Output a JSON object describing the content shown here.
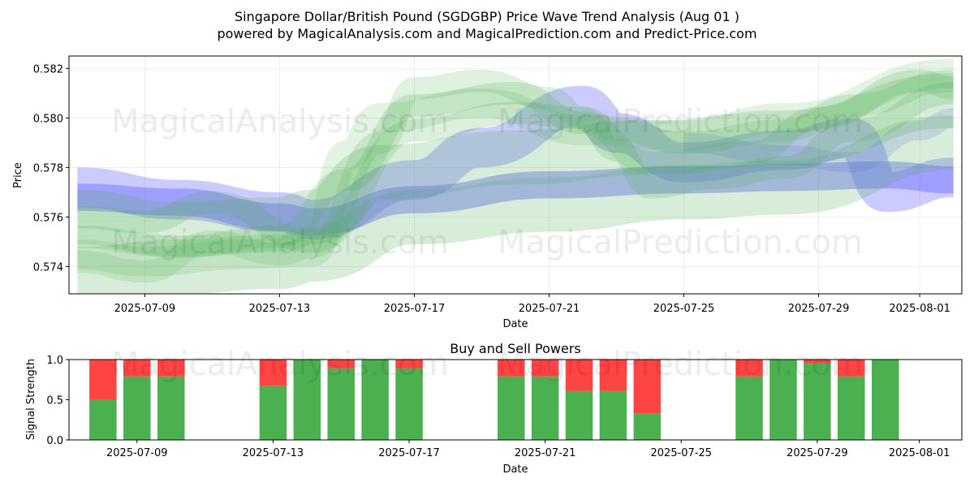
{
  "title": "Singapore Dollar/British Pound (SGDGBP) Price Wave Trend Analysis (Aug 01 )",
  "subtitle": "powered by MagicalAnalysis.com and MagicalPrediction.com and Predict-Price.com",
  "watermarks": [
    "MagicalAnalysis.com",
    "MagicalPrediction.com"
  ],
  "colors": {
    "green_band": "#4caf50",
    "blue_band": "#6b6bff",
    "buy": "#4caf50",
    "sell": "#ff4444"
  },
  "chart_data": [
    {
      "type": "area",
      "name": "price-wave-chart",
      "xlabel": "Date",
      "ylabel": "Price",
      "xlim": [
        "2025-07-06 18:00",
        "2025-08-02 06:00"
      ],
      "ylim": [
        0.5729,
        0.5825
      ],
      "x_ticks": [
        "2025-07-09",
        "2025-07-13",
        "2025-07-17",
        "2025-07-21",
        "2025-07-25",
        "2025-07-29",
        "2025-08-01"
      ],
      "y_ticks": [
        "0.574",
        "0.576",
        "0.578",
        "0.580",
        "0.582"
      ],
      "grid": true,
      "bands": [
        {
          "color": "blue",
          "opacity": 0.45,
          "width": 0.0011,
          "points": [
            [
              "2025-07-07",
              0.5768
            ],
            [
              "2025-07-10",
              0.5766
            ],
            [
              "2025-07-13",
              0.576
            ],
            [
              "2025-07-14",
              0.5758
            ],
            [
              "2025-07-17",
              0.5767
            ],
            [
              "2025-07-21",
              0.5773
            ],
            [
              "2025-07-25",
              0.5775
            ],
            [
              "2025-07-28",
              0.5776
            ],
            [
              "2025-07-31",
              0.5777
            ],
            [
              "2025-08-02",
              0.5775
            ]
          ]
        },
        {
          "color": "blue",
          "opacity": 0.35,
          "width": 0.0016,
          "points": [
            [
              "2025-07-07",
              0.5772
            ],
            [
              "2025-07-10",
              0.5767
            ],
            [
              "2025-07-13",
              0.5762
            ],
            [
              "2025-07-14",
              0.5759
            ],
            [
              "2025-07-17",
              0.5775
            ],
            [
              "2025-07-19",
              0.5788
            ],
            [
              "2025-07-22",
              0.5805
            ],
            [
              "2025-07-23",
              0.5794
            ],
            [
              "2025-07-25",
              0.5782
            ],
            [
              "2025-07-28",
              0.5787
            ],
            [
              "2025-07-30",
              0.5792
            ],
            [
              "2025-07-31",
              0.577
            ],
            [
              "2025-08-02",
              0.5776
            ]
          ]
        },
        {
          "color": "blue",
          "opacity": 0.2,
          "width": 0.0008,
          "points": [
            [
              "2025-07-25",
              0.579
            ],
            [
              "2025-07-28",
              0.5785
            ],
            [
              "2025-07-30",
              0.5782
            ],
            [
              "2025-08-01",
              0.5795
            ],
            [
              "2025-08-02",
              0.58
            ]
          ]
        },
        {
          "color": "green",
          "opacity": 0.22,
          "width": 0.0022,
          "points": [
            [
              "2025-07-07",
              0.576
            ],
            [
              "2025-07-10",
              0.5755
            ],
            [
              "2025-07-13",
              0.5757
            ],
            [
              "2025-07-14",
              0.576
            ],
            [
              "2025-07-16",
              0.5778
            ],
            [
              "2025-07-20",
              0.5784
            ],
            [
              "2025-07-24",
              0.5788
            ],
            [
              "2025-07-28",
              0.5792
            ],
            [
              "2025-08-02",
              0.5807
            ]
          ]
        },
        {
          "color": "green",
          "opacity": 0.22,
          "width": 0.0022,
          "points": [
            [
              "2025-07-07",
              0.5737
            ],
            [
              "2025-07-10",
              0.574
            ],
            [
              "2025-07-13",
              0.5742
            ],
            [
              "2025-07-14",
              0.5745
            ],
            [
              "2025-07-17",
              0.576
            ],
            [
              "2025-07-21",
              0.5765
            ],
            [
              "2025-07-25",
              0.577
            ],
            [
              "2025-07-28",
              0.5772
            ],
            [
              "2025-08-02",
              0.579
            ]
          ]
        },
        {
          "color": "green",
          "opacity": 0.18,
          "width": 0.0009,
          "points": [
            [
              "2025-07-07",
              0.5742
            ],
            [
              "2025-07-09",
              0.5738
            ],
            [
              "2025-07-11",
              0.575
            ],
            [
              "2025-07-13",
              0.5745
            ],
            [
              "2025-07-14",
              0.5748
            ],
            [
              "2025-07-16",
              0.579
            ],
            [
              "2025-07-17",
              0.5812
            ],
            [
              "2025-07-19",
              0.5815
            ],
            [
              "2025-07-21",
              0.5808
            ],
            [
              "2025-07-22",
              0.58
            ],
            [
              "2025-07-23",
              0.5795
            ],
            [
              "2025-07-25",
              0.579
            ],
            [
              "2025-07-28",
              0.5795
            ],
            [
              "2025-07-30",
              0.5805
            ],
            [
              "2025-08-02",
              0.5815
            ]
          ]
        },
        {
          "color": "green",
          "opacity": 0.2,
          "width": 0.0009,
          "points": [
            [
              "2025-07-07",
              0.576
            ],
            [
              "2025-07-09",
              0.5758
            ],
            [
              "2025-07-11",
              0.5766
            ],
            [
              "2025-07-14",
              0.575
            ],
            [
              "2025-07-17",
              0.5795
            ],
            [
              "2025-07-20",
              0.5802
            ],
            [
              "2025-07-22",
              0.58
            ],
            [
              "2025-07-23",
              0.5787
            ],
            [
              "2025-07-24",
              0.5772
            ],
            [
              "2025-07-26",
              0.5776
            ],
            [
              "2025-07-28",
              0.578
            ],
            [
              "2025-07-30",
              0.5795
            ],
            [
              "2025-08-02",
              0.581
            ]
          ]
        },
        {
          "color": "green",
          "opacity": 0.2,
          "width": 0.0009,
          "points": [
            [
              "2025-07-07",
              0.5752
            ],
            [
              "2025-07-10",
              0.5748
            ],
            [
              "2025-07-13",
              0.5752
            ],
            [
              "2025-07-15",
              0.5775
            ],
            [
              "2025-07-17",
              0.5805
            ],
            [
              "2025-07-20",
              0.581
            ],
            [
              "2025-07-22",
              0.5798
            ],
            [
              "2025-07-24",
              0.5782
            ],
            [
              "2025-07-27",
              0.5786
            ],
            [
              "2025-07-29",
              0.58
            ],
            [
              "2025-08-01",
              0.5815
            ],
            [
              "2025-08-02",
              0.5812
            ]
          ]
        },
        {
          "color": "green",
          "opacity": 0.16,
          "width": 0.0012,
          "points": [
            [
              "2025-07-07",
              0.5745
            ],
            [
              "2025-07-09",
              0.5742
            ],
            [
              "2025-07-12",
              0.5745
            ],
            [
              "2025-07-14",
              0.5746
            ],
            [
              "2025-07-15",
              0.5785
            ],
            [
              "2025-07-16",
              0.58
            ],
            [
              "2025-07-19",
              0.5806
            ],
            [
              "2025-07-22",
              0.5795
            ],
            [
              "2025-07-25",
              0.5793
            ],
            [
              "2025-07-28",
              0.58
            ],
            [
              "2025-08-02",
              0.5818
            ]
          ]
        }
      ]
    },
    {
      "type": "bar",
      "name": "buy-sell-powers",
      "title": "Buy and Sell Powers",
      "xlabel": "Date",
      "ylabel": "Signal Strength",
      "ylim": [
        0,
        1
      ],
      "y_ticks": [
        "0.0",
        "0.5",
        "1.0"
      ],
      "x_ticks": [
        "2025-07-09",
        "2025-07-13",
        "2025-07-17",
        "2025-07-21",
        "2025-07-25",
        "2025-07-29",
        "2025-08-01"
      ],
      "xlim": [
        "2025-07-07 00:00",
        "2025-08-02 06:00"
      ],
      "dates": [
        "2025-07-08",
        "2025-07-09",
        "2025-07-10",
        "2025-07-13",
        "2025-07-14",
        "2025-07-15",
        "2025-07-16",
        "2025-07-17",
        "2025-07-20",
        "2025-07-21",
        "2025-07-22",
        "2025-07-23",
        "2025-07-24",
        "2025-07-27",
        "2025-07-28",
        "2025-07-29",
        "2025-07-30",
        "2025-07-31"
      ],
      "series": [
        {
          "name": "buy",
          "values": [
            0.5,
            0.79,
            0.79,
            0.67,
            1.0,
            0.89,
            1.0,
            0.89,
            0.79,
            0.79,
            0.61,
            0.61,
            0.33,
            0.79,
            1.0,
            0.96,
            0.79,
            1.0
          ]
        },
        {
          "name": "sell",
          "values": [
            0.5,
            0.21,
            0.21,
            0.33,
            0.0,
            0.11,
            0.0,
            0.11,
            0.21,
            0.21,
            0.39,
            0.39,
            0.67,
            0.21,
            0.0,
            0.04,
            0.21,
            0.0
          ]
        }
      ]
    }
  ]
}
